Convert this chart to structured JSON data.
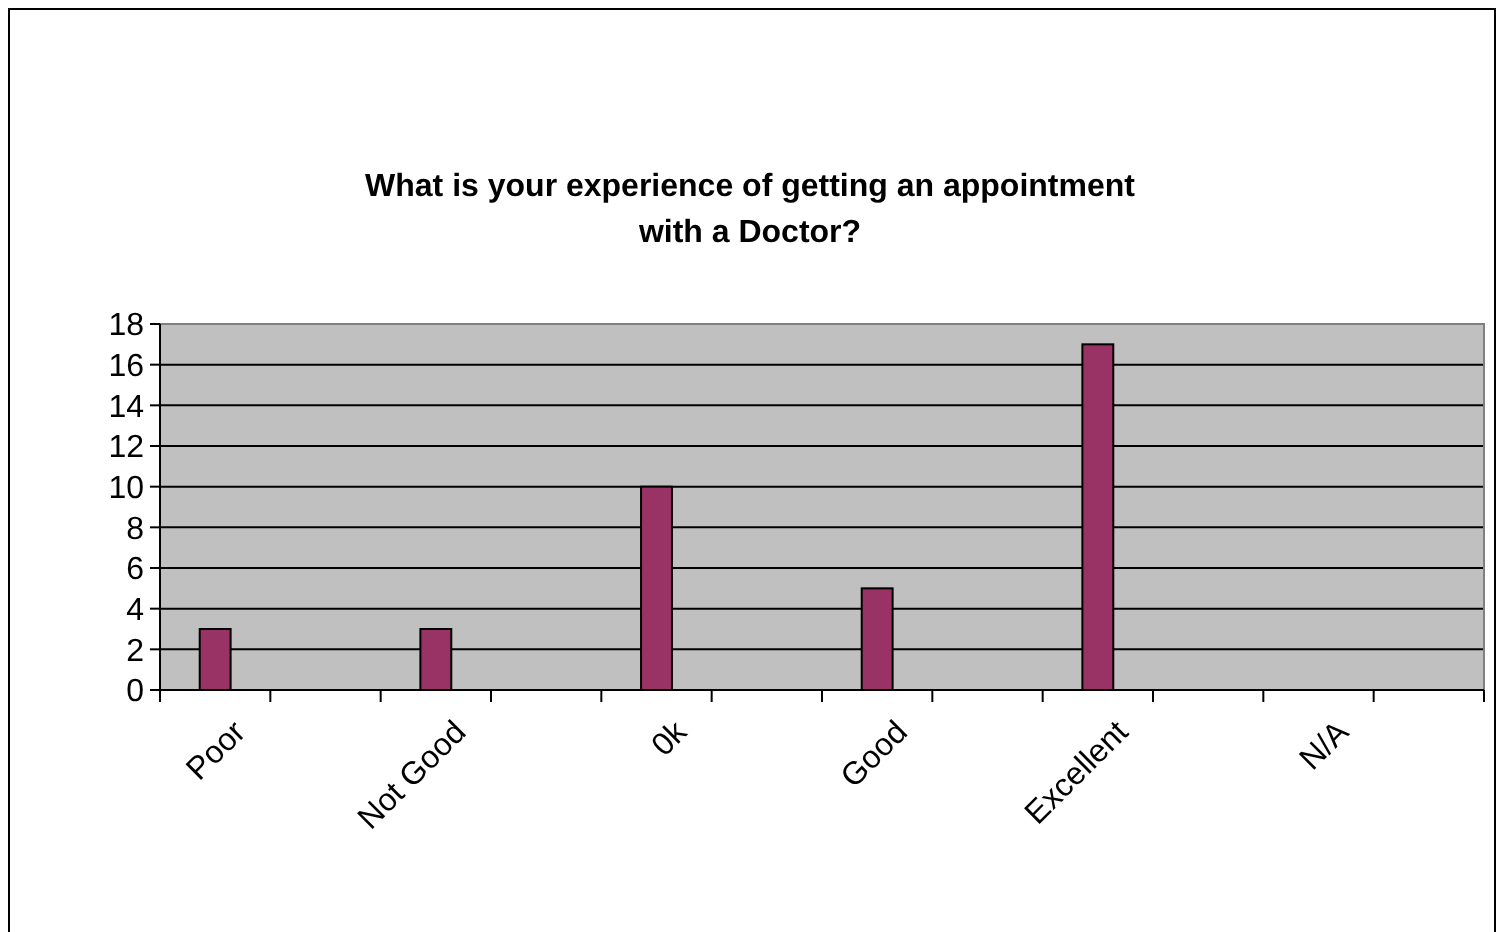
{
  "chart_data": {
    "type": "bar",
    "title": "What is your experience of getting an appointment\nwith a Doctor?",
    "categories": [
      "Poor",
      null,
      "Not Good",
      null,
      "0k",
      null,
      "Good",
      null,
      "Excellent",
      null,
      "N/A",
      null
    ],
    "values": [
      3,
      null,
      3,
      null,
      10,
      null,
      5,
      null,
      17,
      null,
      null,
      null
    ],
    "color": "#993366",
    "ylim": [
      0,
      18
    ],
    "yticks": [
      0,
      2,
      4,
      6,
      8,
      10,
      12,
      14,
      16,
      18
    ],
    "grid": "y"
  }
}
